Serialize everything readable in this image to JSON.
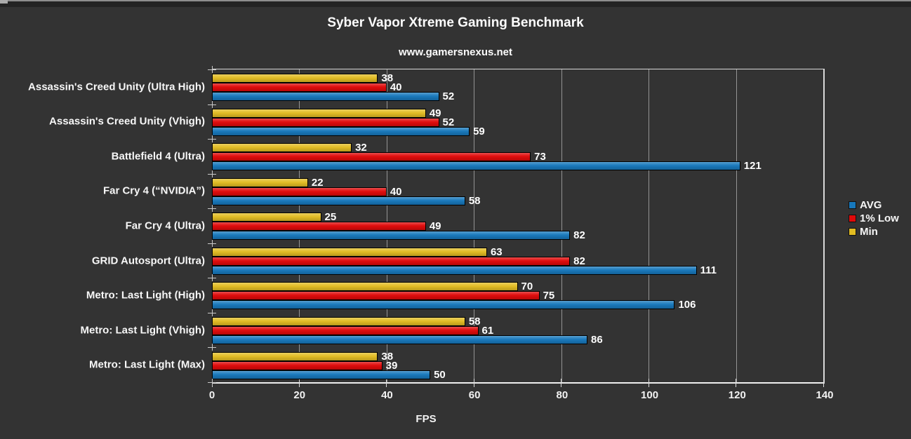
{
  "chart_data": {
    "type": "bar",
    "orientation": "horizontal",
    "title": "Syber Vapor Xtreme Gaming Benchmark",
    "subtitle": "www.gamersnexus.net",
    "xlabel": "FPS",
    "xlim": [
      0,
      140
    ],
    "xticks": [
      0,
      20,
      40,
      60,
      80,
      100,
      120,
      140
    ],
    "grid": true,
    "legend_position": "right",
    "categories": [
      "Assassin's Creed Unity (Ultra High)",
      "Assassin's Creed Unity (Vhigh)",
      "Battlefield 4 (Ultra)",
      "Far Cry 4 (“NVIDIA”)",
      "Far Cry 4 (Ultra)",
      "GRID Autosport (Ultra)",
      "Metro: Last Light (High)",
      "Metro: Last Light (Vhigh)",
      "Metro: Last Light (Max)"
    ],
    "series": [
      {
        "name": "AVG",
        "color": "#1778BC",
        "values": [
          52,
          59,
          121,
          58,
          82,
          111,
          106,
          86,
          50
        ]
      },
      {
        "name": "1% Low",
        "color": "#E00909",
        "values": [
          40,
          52,
          73,
          40,
          49,
          82,
          75,
          61,
          39
        ]
      },
      {
        "name": "Min",
        "color": "#E2BC22",
        "values": [
          38,
          49,
          32,
          22,
          25,
          63,
          70,
          58,
          38
        ]
      }
    ],
    "bar_display_order_top_to_bottom": [
      "Min",
      "1% Low",
      "AVG"
    ]
  },
  "colors": {
    "background": "#333333",
    "text": "#FFFFFF",
    "axis_line": "#EFEFEF",
    "gridline": "#A8A8A8",
    "bar_border": "#000000"
  }
}
